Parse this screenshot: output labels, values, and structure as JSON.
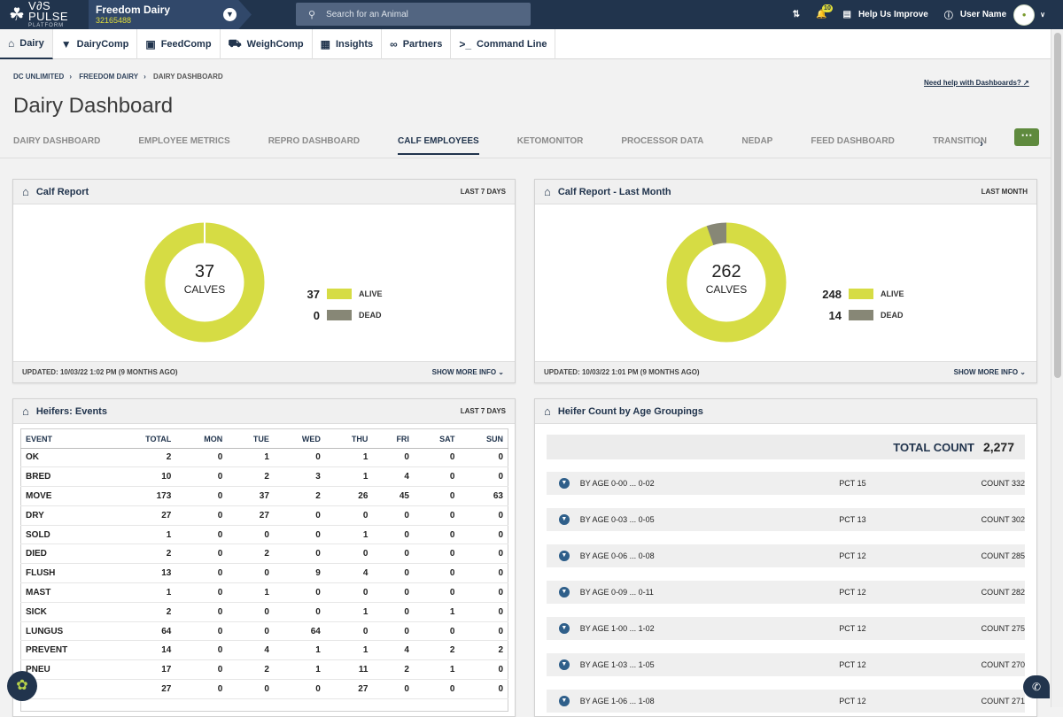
{
  "topbar": {
    "logo_text": "V∂S PULSE",
    "logo_sub": "PLATFORM",
    "farm_name": "Freedom Dairy",
    "farm_id": "32165488",
    "search_placeholder": "Search for an Animal",
    "notification_count": "10",
    "help_label": "Help Us Improve",
    "user_name": "User Name"
  },
  "nav": [
    {
      "label": "Dairy",
      "icon": "home-icon"
    },
    {
      "label": "DairyComp",
      "icon": "cow-icon"
    },
    {
      "label": "FeedComp",
      "icon": "feed-icon"
    },
    {
      "label": "WeighComp",
      "icon": "truck-icon"
    },
    {
      "label": "Insights",
      "icon": "chart-icon"
    },
    {
      "label": "Partners",
      "icon": "partners-icon"
    },
    {
      "label": "Command Line",
      "icon": "terminal-icon"
    }
  ],
  "breadcrumb": [
    "DC UNLIMITED",
    "FREEDOM DAIRY",
    "DAIRY DASHBOARD"
  ],
  "help_link": "Need help with Dashboards?",
  "page_title": "Dairy Dashboard",
  "tabs": [
    "DAIRY DASHBOARD",
    "EMPLOYEE METRICS",
    "REPRO DASHBOARD",
    "CALF EMPLOYEES",
    "KETOMONITOR",
    "PROCESSOR DATA",
    "NEDAP",
    "FEED DASHBOARD",
    "TRANSITION"
  ],
  "active_tab": "CALF EMPLOYEES",
  "colors": {
    "alive": "#d6dc44",
    "dead": "#878776",
    "navy": "#21344d"
  },
  "calf_report": {
    "title": "Calf Report",
    "period": "LAST 7 DAYS",
    "total": "37",
    "unit": "CALVES",
    "alive": "37",
    "dead": "0",
    "alive_label": "ALIVE",
    "dead_label": "DEAD",
    "updated": "UPDATED: 10/03/22 1:02 PM (9 MONTHS AGO)",
    "show_more": "SHOW MORE INFO"
  },
  "calf_report_month": {
    "title": "Calf Report - Last Month",
    "period": "LAST MONTH",
    "total": "262",
    "unit": "CALVES",
    "alive": "248",
    "dead": "14",
    "alive_label": "ALIVE",
    "dead_label": "DEAD",
    "updated": "UPDATED: 10/03/22 1:01 PM (9 MONTHS AGO)",
    "show_more": "SHOW MORE INFO"
  },
  "heifer_events": {
    "title": "Heifers: Events",
    "period": "LAST 7 DAYS",
    "columns": [
      "EVENT",
      "TOTAL",
      "MON",
      "TUE",
      "WED",
      "THU",
      "FRI",
      "SAT",
      "SUN"
    ],
    "rows": [
      [
        "OK",
        "2",
        "0",
        "1",
        "0",
        "1",
        "0",
        "0",
        "0"
      ],
      [
        "BRED",
        "10",
        "0",
        "2",
        "3",
        "1",
        "4",
        "0",
        "0"
      ],
      [
        "MOVE",
        "173",
        "0",
        "37",
        "2",
        "26",
        "45",
        "0",
        "63"
      ],
      [
        "DRY",
        "27",
        "0",
        "27",
        "0",
        "0",
        "0",
        "0",
        "0"
      ],
      [
        "SOLD",
        "1",
        "0",
        "0",
        "0",
        "1",
        "0",
        "0",
        "0"
      ],
      [
        "DIED",
        "2",
        "0",
        "2",
        "0",
        "0",
        "0",
        "0",
        "0"
      ],
      [
        "FLUSH",
        "13",
        "0",
        "0",
        "9",
        "4",
        "0",
        "0",
        "0"
      ],
      [
        "MAST",
        "1",
        "0",
        "1",
        "0",
        "0",
        "0",
        "0",
        "0"
      ],
      [
        "SICK",
        "2",
        "0",
        "0",
        "0",
        "1",
        "0",
        "1",
        "0"
      ],
      [
        "LUNGUS",
        "64",
        "0",
        "0",
        "64",
        "0",
        "0",
        "0",
        "0"
      ],
      [
        "PREVENT",
        "14",
        "0",
        "4",
        "1",
        "1",
        "4",
        "2",
        "2"
      ],
      [
        "PNEU",
        "17",
        "0",
        "2",
        "1",
        "11",
        "2",
        "1",
        "0"
      ],
      [
        "",
        "27",
        "0",
        "0",
        "0",
        "27",
        "0",
        "0",
        "0"
      ]
    ]
  },
  "heifer_count": {
    "title": "Heifer Count by Age Groupings",
    "total_label": "TOTAL COUNT",
    "total_value": "2,277",
    "groups": [
      {
        "label": "BY AGE 0-00 ... 0-02",
        "pct": "PCT 15",
        "count": "COUNT 332"
      },
      {
        "label": "BY AGE 0-03 ... 0-05",
        "pct": "PCT 13",
        "count": "COUNT 302"
      },
      {
        "label": "BY AGE 0-06 ... 0-08",
        "pct": "PCT 12",
        "count": "COUNT 285"
      },
      {
        "label": "BY AGE 0-09 ... 0-11",
        "pct": "PCT 12",
        "count": "COUNT 282"
      },
      {
        "label": "BY AGE 1-00 ... 1-02",
        "pct": "PCT 12",
        "count": "COUNT 275"
      },
      {
        "label": "BY AGE 1-03 ... 1-05",
        "pct": "PCT 12",
        "count": "COUNT 270"
      },
      {
        "label": "BY AGE 1-06 ... 1-08",
        "pct": "PCT 12",
        "count": "COUNT 271"
      }
    ]
  }
}
